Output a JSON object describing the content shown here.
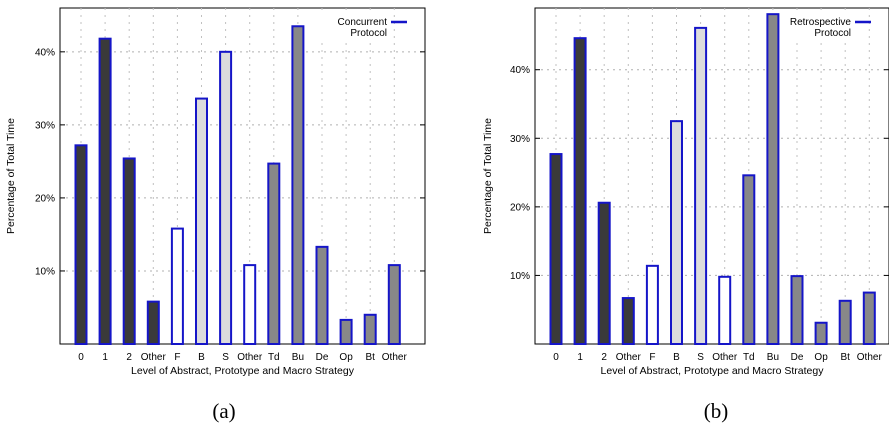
{
  "chart_data": [
    {
      "type": "bar",
      "categories": [
        "0",
        "1",
        "2",
        "Other",
        "F",
        "B",
        "S",
        "Other",
        "Td",
        "Bu",
        "De",
        "Op",
        "Bt",
        "Other"
      ],
      "values": [
        27.2,
        41.8,
        25.4,
        5.8,
        15.8,
        33.6,
        40.0,
        10.8,
        24.7,
        43.5,
        13.3,
        3.3,
        4.0,
        10.8
      ],
      "group_colors": [
        "#3a3a3a",
        "#3a3a3a",
        "#3a3a3a",
        "#3a3a3a",
        "#ffffff",
        "#dcdcdc",
        "#dcdcdc",
        "#ffffff",
        "#888888",
        "#888888",
        "#888888",
        "#888888",
        "#888888",
        "#888888"
      ],
      "bar_edge_color": "#1515c8",
      "title": "",
      "xlabel": "Level of Abstract, Prototype and Macro Strategy",
      "ylabel": "Percentage of Total Time",
      "ylim": [
        0,
        46
      ],
      "yticks": [
        10,
        20,
        30,
        40
      ],
      "ytick_labels": [
        "10%",
        "20%",
        "30%",
        "40%"
      ],
      "grid": true,
      "legend": {
        "lines": [
          "Concurrent",
          "Protocol"
        ],
        "position": "top-right"
      },
      "caption": "(a)"
    },
    {
      "type": "bar",
      "categories": [
        "0",
        "1",
        "2",
        "Other",
        "F",
        "B",
        "S",
        "Other",
        "Td",
        "Bu",
        "De",
        "Op",
        "Bt",
        "Other"
      ],
      "values": [
        27.7,
        44.6,
        20.6,
        6.7,
        11.4,
        32.5,
        46.1,
        9.8,
        24.6,
        48.1,
        9.9,
        3.1,
        6.3,
        7.5
      ],
      "group_colors": [
        "#3a3a3a",
        "#3a3a3a",
        "#3a3a3a",
        "#3a3a3a",
        "#ffffff",
        "#dcdcdc",
        "#dcdcdc",
        "#ffffff",
        "#888888",
        "#888888",
        "#888888",
        "#888888",
        "#888888",
        "#888888"
      ],
      "bar_edge_color": "#1515c8",
      "title": "",
      "xlabel": "Level of Abstract, Prototype and Macro Strategy",
      "ylabel": "Percentage of Total Time",
      "ylim": [
        0,
        49
      ],
      "yticks": [
        10,
        20,
        30,
        40
      ],
      "ytick_labels": [
        "10%",
        "20%",
        "30%",
        "40%"
      ],
      "grid": true,
      "legend": {
        "lines": [
          "Retrospective",
          "Protocol"
        ],
        "position": "top-right"
      },
      "caption": "(b)"
    }
  ]
}
